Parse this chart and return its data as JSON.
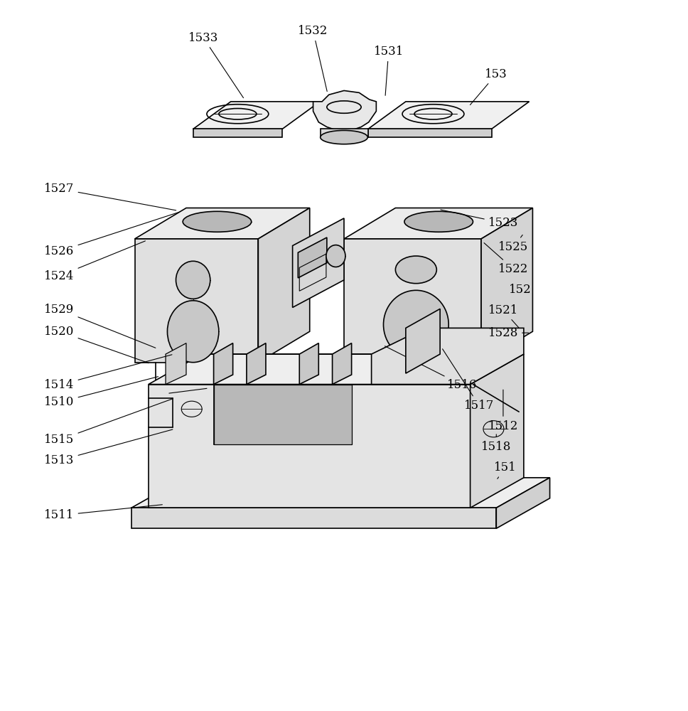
{
  "bg_color": "#ffffff",
  "line_color": "#000000",
  "line_width": 1.2,
  "fig_width": 9.68,
  "fig_height": 10.0
}
